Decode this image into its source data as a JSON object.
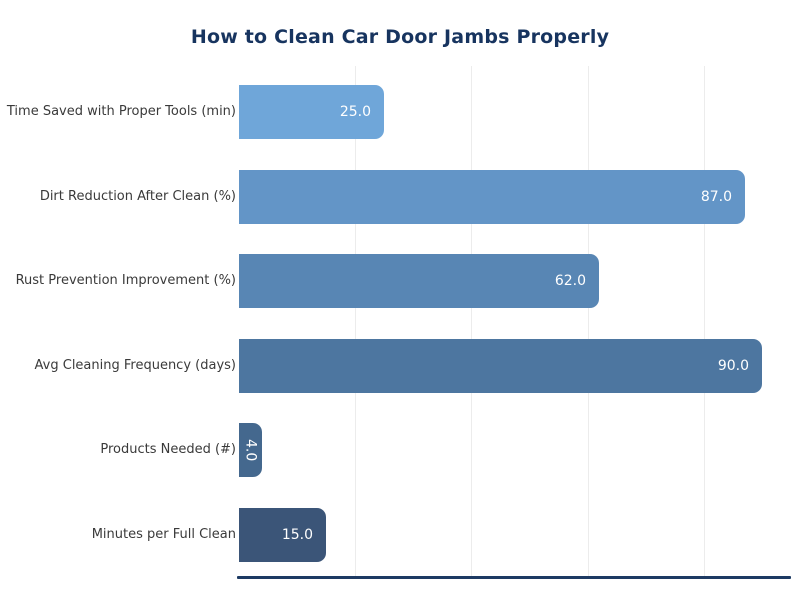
{
  "title": "How to Clean Car Door Jambs Properly",
  "colors": {
    "title_text": "#17345f",
    "axis_line": "#1d3a63",
    "gridline": "#ececec",
    "category_text": "#3a3a3a",
    "value_text": "#ffffff",
    "background": "#ffffff"
  },
  "chart_data": {
    "type": "bar",
    "orientation": "horizontal",
    "title": "How to Clean Car Door Jambs Properly",
    "categories": [
      "Time Saved with Proper Tools (min)",
      "Dirt Reduction After Clean (%)",
      "Rust Prevention Improvement (%)",
      "Avg Cleaning Frequency (days)",
      "Products Needed (#)",
      "Minutes per Full Clean"
    ],
    "values": [
      25.0,
      87.0,
      62.0,
      90.0,
      4.0,
      15.0
    ],
    "value_labels": [
      "25.0",
      "87.0",
      "62.0",
      "90.0",
      "4.0",
      "15.0"
    ],
    "bar_colors": [
      "#6fa6d9",
      "#6395c7",
      "#5886b4",
      "#4d76a0",
      "#44688e",
      "#3b5578"
    ],
    "xlim": [
      0,
      95
    ],
    "gridlines_x": [
      20,
      40,
      60,
      80
    ],
    "grid": true,
    "legend": false,
    "xlabel": "",
    "ylabel": ""
  }
}
